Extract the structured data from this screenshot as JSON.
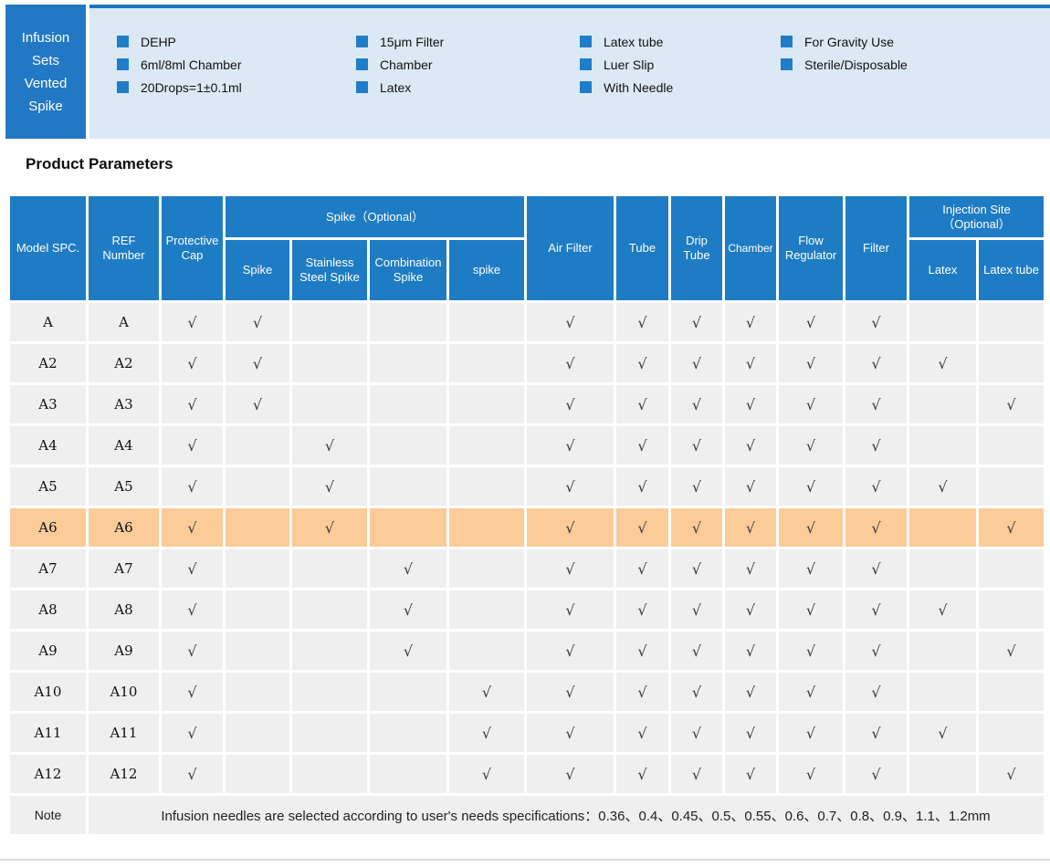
{
  "product_box": {
    "lines": [
      "Infusion",
      "Sets",
      "Vented",
      "Spike"
    ]
  },
  "features": [
    {
      "items": [
        "DEHP",
        "6ml/8ml Chamber",
        "20Drops=1±0.1ml"
      ]
    },
    {
      "items": [
        "15μm Filter",
        "Chamber",
        "Latex"
      ]
    },
    {
      "items": [
        "Latex tube",
        "Luer Slip",
        "With Needle"
      ]
    },
    {
      "items": [
        "For Gravity Use",
        "Sterile/Disposable"
      ]
    }
  ],
  "section_title": "Product Parameters",
  "table": {
    "group_headers": {
      "spike": "Spike（Optional）",
      "injection": "Injection Site（Optional）"
    },
    "columns": [
      "Model SPC.",
      "REF Number",
      "Protective Cap",
      "Spike",
      "Stainless Steel Spike",
      "Combination Spike",
      "spike",
      "Air Filter",
      "Tube",
      "Drip Tube",
      "Chamber",
      "Flow Regulator",
      "Filter",
      "Latex",
      "Latex tube"
    ],
    "check_mark": "√",
    "rows": [
      {
        "model": "A",
        "ref": "A",
        "highlight": false,
        "checks": [
          1,
          1,
          0,
          0,
          0,
          1,
          1,
          1,
          1,
          1,
          1,
          0,
          0
        ]
      },
      {
        "model": "A2",
        "ref": "A2",
        "highlight": false,
        "checks": [
          1,
          1,
          0,
          0,
          0,
          1,
          1,
          1,
          1,
          1,
          1,
          1,
          0
        ]
      },
      {
        "model": "A3",
        "ref": "A3",
        "highlight": false,
        "checks": [
          1,
          1,
          0,
          0,
          0,
          1,
          1,
          1,
          1,
          1,
          1,
          0,
          1
        ]
      },
      {
        "model": "A4",
        "ref": "A4",
        "highlight": false,
        "checks": [
          1,
          0,
          1,
          0,
          0,
          1,
          1,
          1,
          1,
          1,
          1,
          0,
          0
        ]
      },
      {
        "model": "A5",
        "ref": "A5",
        "highlight": false,
        "checks": [
          1,
          0,
          1,
          0,
          0,
          1,
          1,
          1,
          1,
          1,
          1,
          1,
          0
        ]
      },
      {
        "model": "A6",
        "ref": "A6",
        "highlight": true,
        "checks": [
          1,
          0,
          1,
          0,
          0,
          1,
          1,
          1,
          1,
          1,
          1,
          0,
          1
        ]
      },
      {
        "model": "A7",
        "ref": "A7",
        "highlight": false,
        "checks": [
          1,
          0,
          0,
          1,
          0,
          1,
          1,
          1,
          1,
          1,
          1,
          0,
          0
        ]
      },
      {
        "model": "A8",
        "ref": "A8",
        "highlight": false,
        "checks": [
          1,
          0,
          0,
          1,
          0,
          1,
          1,
          1,
          1,
          1,
          1,
          1,
          0
        ]
      },
      {
        "model": "A9",
        "ref": "A9",
        "highlight": false,
        "checks": [
          1,
          0,
          0,
          1,
          0,
          1,
          1,
          1,
          1,
          1,
          1,
          0,
          1
        ]
      },
      {
        "model": "A10",
        "ref": "A10",
        "highlight": false,
        "checks": [
          1,
          0,
          0,
          0,
          1,
          1,
          1,
          1,
          1,
          1,
          1,
          0,
          0
        ]
      },
      {
        "model": "A11",
        "ref": "A11",
        "highlight": false,
        "checks": [
          1,
          0,
          0,
          0,
          1,
          1,
          1,
          1,
          1,
          1,
          1,
          1,
          0
        ]
      },
      {
        "model": "A12",
        "ref": "A12",
        "highlight": false,
        "checks": [
          1,
          0,
          0,
          0,
          1,
          1,
          1,
          1,
          1,
          1,
          1,
          0,
          1
        ]
      }
    ]
  },
  "note": {
    "label": "Note",
    "text": "Infusion needles are selected according to user's needs specifications：0.36、0.4、0.45、0.5、0.55、0.6、0.7、0.8、0.9、1.1、1.2mm"
  },
  "colors": {
    "header_blue": "#1e7cc4",
    "box_blue": "#2278c4",
    "banner_bg": "#dce9f5",
    "banner_border": "#1a74c0",
    "bullet_blue": "#1f7dc9",
    "row_gray": "#efefef",
    "highlight_orange": "#fbcb98",
    "note_bg": "#b6d4eb"
  }
}
